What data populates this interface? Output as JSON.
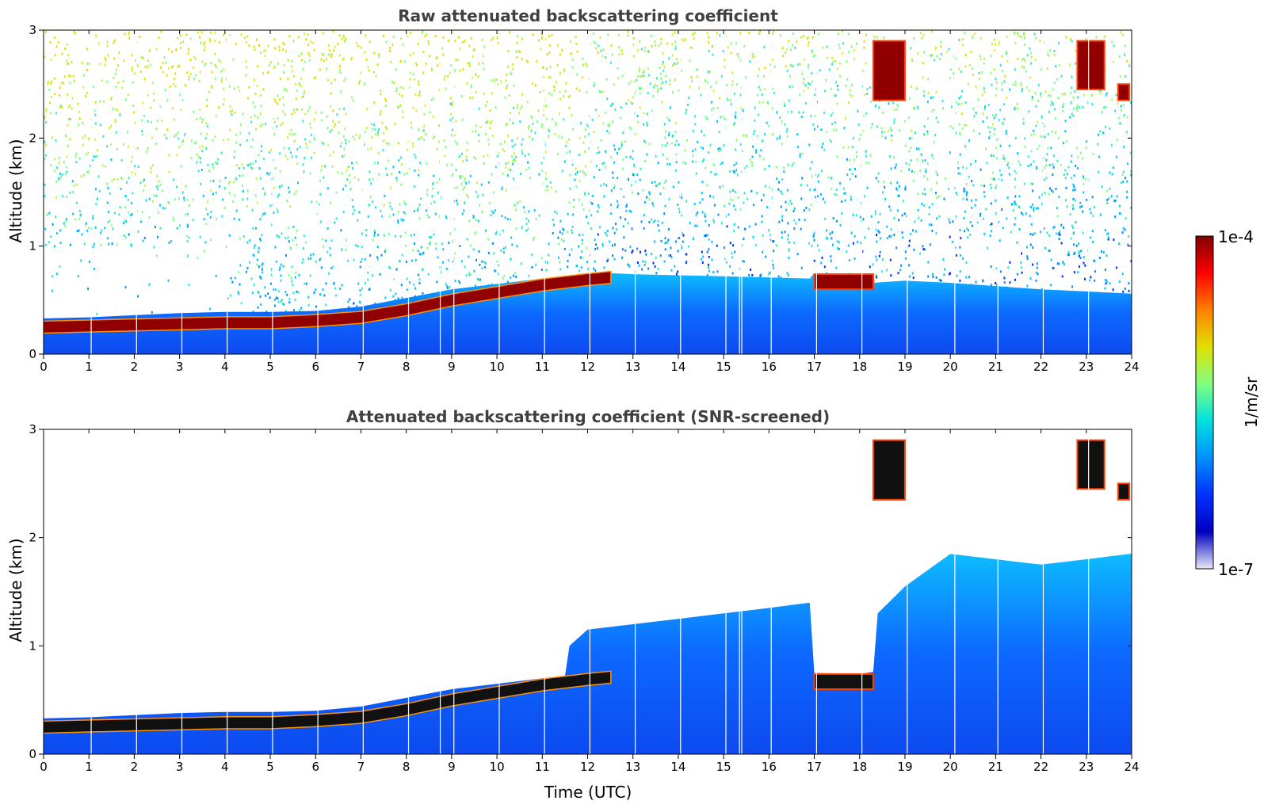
{
  "chart_data": [
    {
      "type": "heatmap",
      "title": "Raw attenuated backscattering coefficient",
      "xlabel": "",
      "ylabel": "Altitude (km)",
      "xlim": [
        0,
        24
      ],
      "ylim": [
        0,
        3
      ],
      "xticks": [
        "0",
        "1",
        "2",
        "3",
        "4",
        "5",
        "6",
        "7",
        "8",
        "9",
        "10",
        "11",
        "12",
        "13",
        "14",
        "15",
        "16",
        "17",
        "18",
        "19",
        "20",
        "21",
        "22",
        "23",
        "24"
      ],
      "yticks": [
        "0",
        "1",
        "2",
        "3"
      ],
      "background_noise": "high",
      "layer_top_km": {
        "x": [
          0,
          1,
          2,
          3,
          4,
          5,
          6,
          7,
          8,
          9,
          10,
          11,
          12,
          12.5,
          13,
          14,
          15,
          16,
          16.9,
          17,
          18,
          18.3,
          19,
          20,
          21,
          22,
          23,
          24
        ],
        "y": [
          0.33,
          0.34,
          0.36,
          0.38,
          0.39,
          0.39,
          0.4,
          0.44,
          0.52,
          0.6,
          0.65,
          0.7,
          0.74,
          0.75,
          0.74,
          0.73,
          0.72,
          0.71,
          0.7,
          0.75,
          0.68,
          0.66,
          0.68,
          0.66,
          0.63,
          0.6,
          0.58,
          0.56
        ]
      },
      "cloud_layer": {
        "x": [
          0,
          1,
          2,
          3,
          4,
          5,
          6,
          7,
          8,
          9,
          10,
          11,
          12,
          12.5
        ],
        "y": [
          0.25,
          0.26,
          0.27,
          0.28,
          0.29,
          0.29,
          0.31,
          0.34,
          0.41,
          0.5,
          0.57,
          0.64,
          0.69,
          0.71
        ]
      },
      "cloud_patches": [
        {
          "x0": 17.0,
          "x1": 18.3,
          "y0": 0.6,
          "y1": 0.74
        },
        {
          "x0": 18.3,
          "x1": 19.0,
          "y0": 2.35,
          "y1": 2.9
        },
        {
          "x0": 22.8,
          "x1": 23.4,
          "y0": 2.45,
          "y1": 2.9
        },
        {
          "x0": 23.7,
          "x1": 23.95,
          "y0": 2.35,
          "y1": 2.5
        }
      ],
      "data_gaps": [
        1.05,
        2.05,
        3.05,
        4.05,
        5.05,
        6.05,
        7.05,
        8.05,
        8.75,
        9.05,
        10.05,
        11.05,
        12.05,
        13.05,
        14.05,
        15.05,
        15.35,
        15.4,
        16.05,
        17.05,
        18.05,
        19.05,
        20.1,
        21.05,
        22.05,
        23.05
      ]
    },
    {
      "type": "heatmap",
      "title": "Attenuated backscattering coefficient (SNR-screened)",
      "xlabel": "Time (UTC)",
      "ylabel": "Altitude (km)",
      "xlim": [
        0,
        24
      ],
      "ylim": [
        0,
        3
      ],
      "xticks": [
        "0",
        "1",
        "2",
        "3",
        "4",
        "5",
        "6",
        "7",
        "8",
        "9",
        "10",
        "11",
        "12",
        "13",
        "14",
        "15",
        "16",
        "17",
        "18",
        "19",
        "20",
        "21",
        "22",
        "23",
        "24"
      ],
      "yticks": [
        "0",
        "1",
        "2",
        "3"
      ],
      "background_noise": "none",
      "layer_top_km": {
        "x": [
          0,
          1,
          2,
          3,
          4,
          5,
          6,
          7,
          8,
          9,
          10,
          11,
          11.5,
          11.6,
          12,
          13,
          14,
          15,
          16,
          16.9,
          17,
          18,
          18.3,
          18.4,
          19,
          19.5,
          20,
          21,
          22,
          23,
          23.95
        ],
        "y": [
          0.33,
          0.34,
          0.36,
          0.38,
          0.39,
          0.39,
          0.4,
          0.44,
          0.52,
          0.6,
          0.65,
          0.7,
          0.72,
          1.0,
          1.15,
          1.2,
          1.25,
          1.3,
          1.35,
          1.4,
          0.75,
          0.74,
          0.76,
          1.3,
          1.55,
          1.7,
          1.85,
          1.8,
          1.75,
          1.8,
          1.85
        ]
      },
      "cloud_layer": {
        "x": [
          0,
          1,
          2,
          3,
          4,
          5,
          6,
          7,
          8,
          9,
          10,
          11,
          12,
          12.5
        ],
        "y": [
          0.25,
          0.26,
          0.27,
          0.28,
          0.29,
          0.29,
          0.31,
          0.34,
          0.41,
          0.5,
          0.57,
          0.64,
          0.69,
          0.71
        ]
      },
      "cloud_patches": [
        {
          "x0": 17.0,
          "x1": 18.3,
          "y0": 0.6,
          "y1": 0.74
        },
        {
          "x0": 18.3,
          "x1": 19.0,
          "y0": 2.35,
          "y1": 2.9
        },
        {
          "x0": 22.8,
          "x1": 23.4,
          "y0": 2.45,
          "y1": 2.9
        },
        {
          "x0": 23.7,
          "x1": 23.95,
          "y0": 2.35,
          "y1": 2.5
        }
      ],
      "data_gaps": [
        1.05,
        2.05,
        3.05,
        4.05,
        5.05,
        6.05,
        7.05,
        8.05,
        8.75,
        9.05,
        10.05,
        11.05,
        12.05,
        13.05,
        14.05,
        15.05,
        15.35,
        15.4,
        16.05,
        17.05,
        18.05,
        19.05,
        20.1,
        21.05,
        22.05,
        23.05
      ]
    }
  ],
  "colorbar": {
    "label": "1/m/sr",
    "max_label": "1e-4",
    "min_label": "1e-7",
    "scale": "log",
    "colormap": "jet",
    "colors": [
      "#e8e8f8",
      "#0000c0",
      "#0030ff",
      "#0090ff",
      "#00e0e0",
      "#80ff80",
      "#e0e000",
      "#ff8000",
      "#ff0000",
      "#800000"
    ]
  }
}
